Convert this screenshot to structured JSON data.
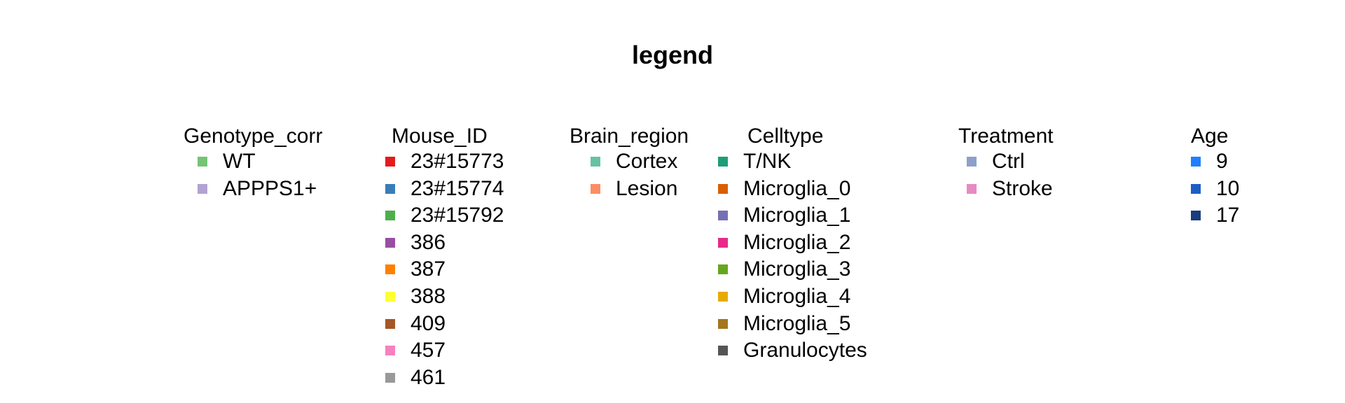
{
  "title": "legend",
  "chart_data": {
    "type": "legend",
    "title": "legend",
    "groups": [
      {
        "title": "Genotype_corr",
        "entries": [
          {
            "label": "WT",
            "color": "#74C476"
          },
          {
            "label": "APPPS1+",
            "color": "#B3A2D2"
          }
        ]
      },
      {
        "title": "Mouse_ID",
        "entries": [
          {
            "label": "23#15773",
            "color": "#E41A1C"
          },
          {
            "label": "23#15774",
            "color": "#377EB8"
          },
          {
            "label": "23#15792",
            "color": "#4DAF4A"
          },
          {
            "label": "386",
            "color": "#984EA3"
          },
          {
            "label": "387",
            "color": "#FF7F00"
          },
          {
            "label": "388",
            "color": "#FFFF33"
          },
          {
            "label": "409",
            "color": "#A65628"
          },
          {
            "label": "457",
            "color": "#F781BF"
          },
          {
            "label": "461",
            "color": "#999999"
          }
        ]
      },
      {
        "title": "Brain_region",
        "entries": [
          {
            "label": "Cortex",
            "color": "#66C2A5"
          },
          {
            "label": "Lesion",
            "color": "#FC8D62"
          }
        ]
      },
      {
        "title": "Celltype",
        "entries": [
          {
            "label": "T/NK",
            "color": "#1B9E77"
          },
          {
            "label": "Microglia_0",
            "color": "#D95F02"
          },
          {
            "label": "Microglia_1",
            "color": "#7570B3"
          },
          {
            "label": "Microglia_2",
            "color": "#E7298A"
          },
          {
            "label": "Microglia_3",
            "color": "#66A61E"
          },
          {
            "label": "Microglia_4",
            "color": "#E6AB02"
          },
          {
            "label": "Microglia_5",
            "color": "#A6761D"
          },
          {
            "label": "Granulocytes",
            "color": "#555555"
          }
        ]
      },
      {
        "title": "Treatment",
        "entries": [
          {
            "label": "Ctrl",
            "color": "#8DA0CB"
          },
          {
            "label": "Stroke",
            "color": "#E78AC3"
          }
        ]
      },
      {
        "title": "Age",
        "entries": [
          {
            "label": "9",
            "color": "#1E80FF"
          },
          {
            "label": "10",
            "color": "#1D5EC4"
          },
          {
            "label": "17",
            "color": "#1A3C7C"
          }
        ]
      }
    ]
  }
}
